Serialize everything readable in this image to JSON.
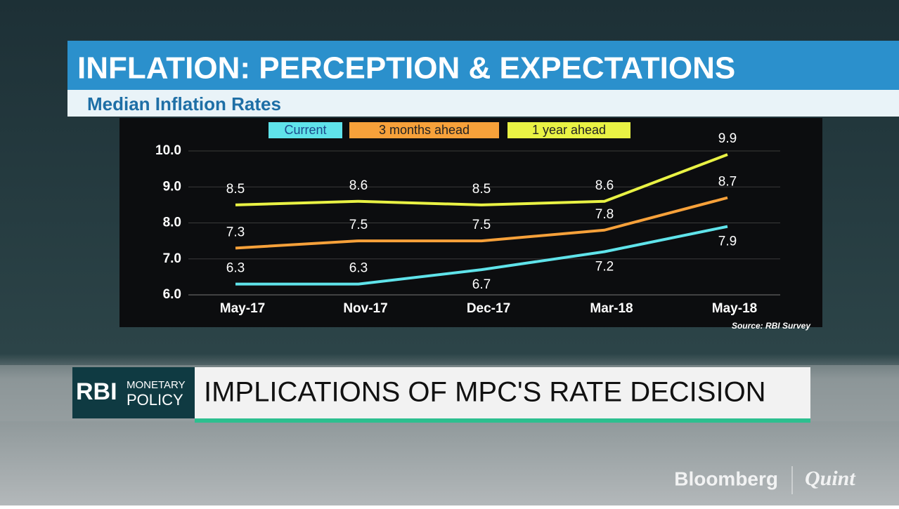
{
  "chart_data": {
    "type": "line",
    "title": "INFLATION: PERCEPTION & EXPECTATIONS",
    "subtitle": "Median Inflation Rates",
    "source": "Source: RBI Survey",
    "categories": [
      "May-17",
      "Nov-17",
      "Dec-17",
      "Mar-18",
      "May-18"
    ],
    "series": [
      {
        "name": "Current",
        "color": "#5fe3ea",
        "values": [
          6.3,
          6.3,
          6.7,
          7.2,
          7.9
        ]
      },
      {
        "name": "3 months ahead",
        "color": "#f7a13a",
        "values": [
          7.3,
          7.5,
          7.5,
          7.8,
          8.7
        ]
      },
      {
        "name": "1 year ahead",
        "color": "#e9f244",
        "values": [
          8.5,
          8.6,
          8.5,
          8.6,
          9.9
        ]
      }
    ],
    "ylim": [
      6,
      10
    ],
    "yticks": [
      {
        "value": 6,
        "label": "6.0"
      },
      {
        "value": 7,
        "label": "7.0"
      },
      {
        "value": 8,
        "label": "8.0"
      },
      {
        "value": 9,
        "label": "9.0"
      },
      {
        "value": 10,
        "label": "10.0"
      }
    ],
    "grid": true
  },
  "banner": {
    "brand": "RBI",
    "brand_line1": "MONETARY",
    "brand_line2": "POLICY",
    "headline": "IMPLICATIONS OF MPC'S RATE DECISION"
  },
  "logo": {
    "left": "Bloomberg",
    "right": "Quint"
  }
}
